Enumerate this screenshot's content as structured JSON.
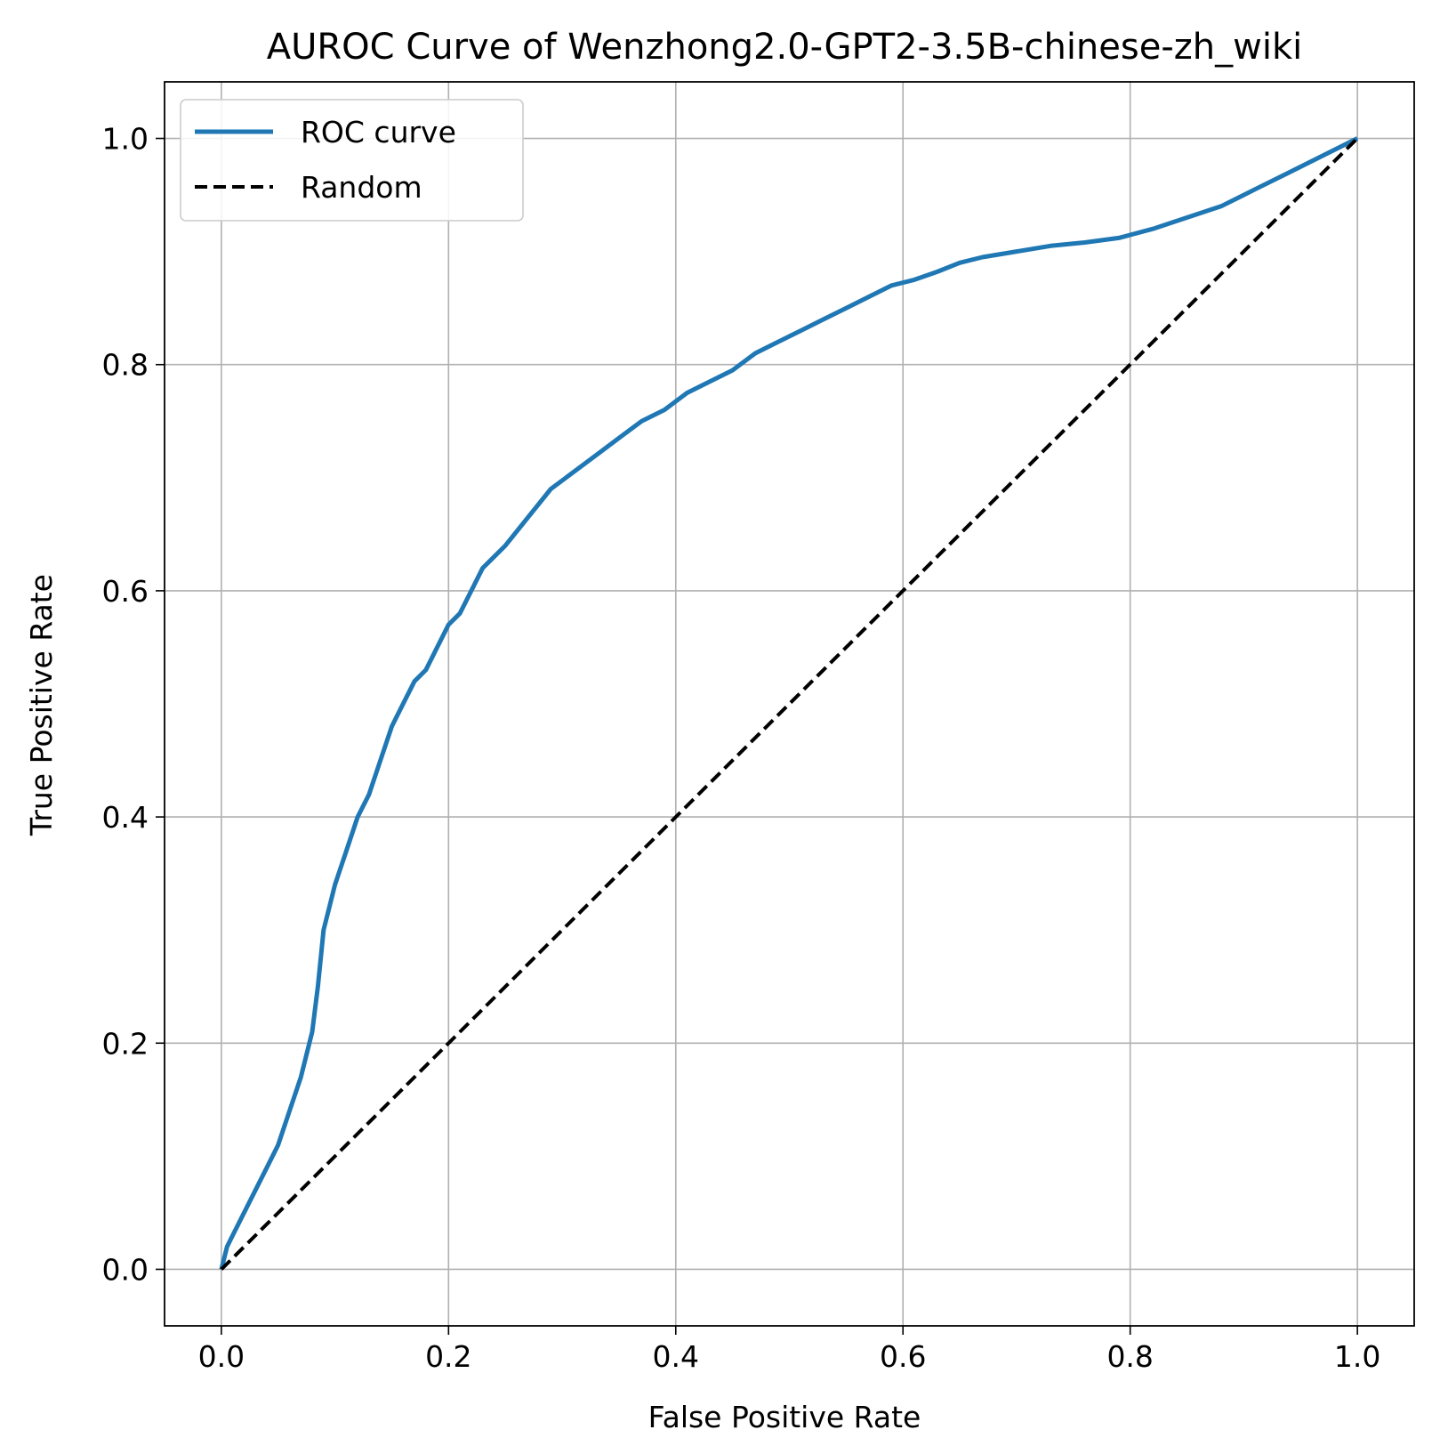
{
  "chart_data": {
    "type": "line",
    "title": "AUROC Curve of Wenzhong2.0-GPT2-3.5B-chinese-zh_wiki",
    "xlabel": "False Positive Rate",
    "ylabel": "True Positive Rate",
    "xlim": [
      -0.05,
      1.05
    ],
    "ylim": [
      -0.05,
      1.05
    ],
    "xticks": [
      "0.0",
      "0.2",
      "0.4",
      "0.6",
      "0.8",
      "1.0"
    ],
    "yticks": [
      "0.0",
      "0.2",
      "0.4",
      "0.6",
      "0.8",
      "1.0"
    ],
    "grid": true,
    "legend_position": "upper-left",
    "series": [
      {
        "name": "ROC curve",
        "color": "#1f77b4",
        "style": "solid",
        "x": [
          0.0,
          0.005,
          0.01,
          0.02,
          0.03,
          0.04,
          0.05,
          0.06,
          0.07,
          0.08,
          0.085,
          0.09,
          0.095,
          0.1,
          0.11,
          0.12,
          0.13,
          0.14,
          0.15,
          0.16,
          0.17,
          0.18,
          0.19,
          0.2,
          0.21,
          0.22,
          0.23,
          0.24,
          0.25,
          0.27,
          0.29,
          0.31,
          0.33,
          0.35,
          0.37,
          0.39,
          0.41,
          0.43,
          0.45,
          0.47,
          0.49,
          0.51,
          0.53,
          0.55,
          0.57,
          0.59,
          0.61,
          0.63,
          0.65,
          0.67,
          0.7,
          0.73,
          0.76,
          0.79,
          0.82,
          0.85,
          0.88,
          0.91,
          0.94,
          0.97,
          1.0
        ],
        "y": [
          0.0,
          0.02,
          0.03,
          0.05,
          0.07,
          0.09,
          0.11,
          0.14,
          0.17,
          0.21,
          0.25,
          0.3,
          0.32,
          0.34,
          0.37,
          0.4,
          0.42,
          0.45,
          0.48,
          0.5,
          0.52,
          0.53,
          0.55,
          0.57,
          0.58,
          0.6,
          0.62,
          0.63,
          0.64,
          0.665,
          0.69,
          0.705,
          0.72,
          0.735,
          0.75,
          0.76,
          0.775,
          0.785,
          0.795,
          0.81,
          0.82,
          0.83,
          0.84,
          0.85,
          0.86,
          0.87,
          0.875,
          0.882,
          0.89,
          0.895,
          0.9,
          0.905,
          0.908,
          0.912,
          0.92,
          0.93,
          0.94,
          0.955,
          0.97,
          0.985,
          1.0
        ]
      },
      {
        "name": "Random",
        "color": "#000000",
        "style": "dashed",
        "x": [
          0.0,
          1.0
        ],
        "y": [
          0.0,
          1.0
        ]
      }
    ]
  }
}
